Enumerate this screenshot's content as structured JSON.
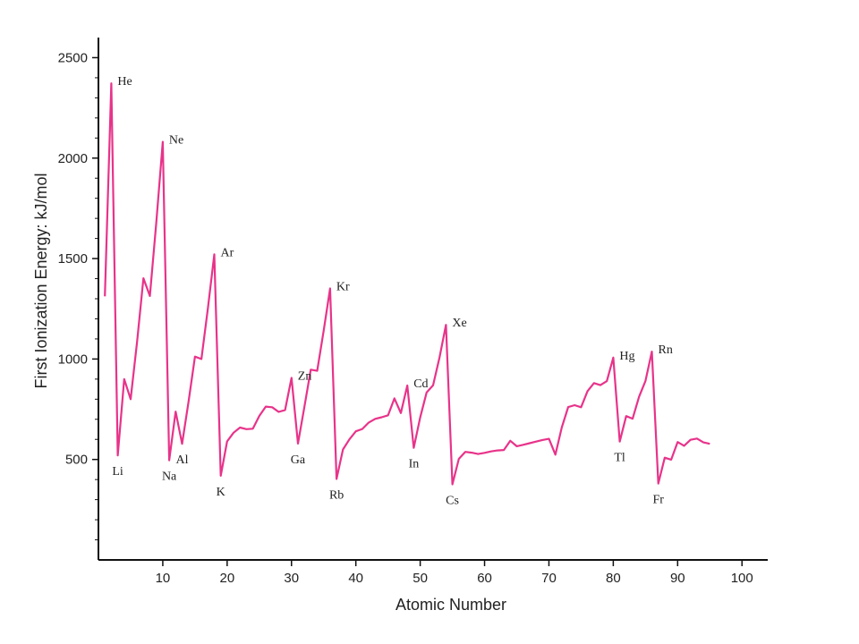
{
  "chart_data": {
    "type": "line",
    "title": "",
    "xlabel": "Atomic Number",
    "ylabel": "First Ionization Energy: kJ/mol",
    "xlim": [
      0,
      104
    ],
    "ylim": [
      0,
      2600
    ],
    "xticks": [
      10,
      20,
      30,
      40,
      50,
      60,
      70,
      80,
      90,
      100
    ],
    "yticks": [
      500,
      1000,
      1500,
      2000,
      2500
    ],
    "grid": false,
    "line_color": "#e8338a",
    "series": [
      {
        "x": [
          1,
          2,
          3,
          4,
          5,
          6,
          7,
          8,
          9,
          10,
          11,
          12,
          13,
          14,
          15,
          16,
          17,
          18,
          19,
          20,
          21,
          22,
          23,
          24,
          25,
          26,
          27,
          28,
          29,
          30,
          31,
          32,
          33,
          34,
          35,
          36,
          37,
          38,
          39,
          40,
          41,
          42,
          43,
          44,
          45,
          46,
          47,
          48,
          49,
          50,
          51,
          52,
          53,
          54,
          55,
          56,
          57,
          58,
          59,
          60,
          61,
          62,
          63,
          64,
          65,
          66,
          67,
          68,
          69,
          70,
          71,
          72,
          73,
          74,
          75,
          76,
          77,
          78,
          79,
          80,
          81,
          82,
          83,
          84,
          85,
          86,
          87,
          88,
          89,
          90,
          91,
          92,
          93,
          94,
          95
        ],
        "y": [
          1312,
          2372,
          520,
          900,
          800,
          1086,
          1402,
          1314,
          1681,
          2081,
          496,
          738,
          578,
          787,
          1012,
          1000,
          1251,
          1521,
          419,
          590,
          633,
          659,
          651,
          653,
          717,
          763,
          760,
          737,
          746,
          906,
          579,
          762,
          947,
          941,
          1140,
          1351,
          403,
          550,
          600,
          640,
          652,
          684,
          702,
          710,
          720,
          804,
          731,
          868,
          558,
          709,
          834,
          869,
          1008,
          1170,
          376,
          503,
          538,
          534,
          527,
          533,
          540,
          545,
          547,
          593,
          566,
          573,
          581,
          589,
          597,
          603,
          524,
          659,
          761,
          770,
          760,
          840,
          880,
          870,
          890,
          1007,
          589,
          716,
          703,
          812,
          890,
          1037,
          380,
          509,
          499,
          587,
          568,
          598,
          604,
          585,
          578
        ]
      }
    ],
    "annotations": [
      {
        "text": "He",
        "x": 2
      },
      {
        "text": "Li",
        "x": 3
      },
      {
        "text": "Ne",
        "x": 10
      },
      {
        "text": "Na",
        "x": 11
      },
      {
        "text": "Al",
        "x": 13
      },
      {
        "text": "Ar",
        "x": 18
      },
      {
        "text": "K",
        "x": 19
      },
      {
        "text": "Zn",
        "x": 30
      },
      {
        "text": "Ga",
        "x": 31
      },
      {
        "text": "Kr",
        "x": 36
      },
      {
        "text": "Rb",
        "x": 37
      },
      {
        "text": "Cd",
        "x": 48
      },
      {
        "text": "In",
        "x": 49
      },
      {
        "text": "Xe",
        "x": 54
      },
      {
        "text": "Cs",
        "x": 55
      },
      {
        "text": "Hg",
        "x": 80
      },
      {
        "text": "Tl",
        "x": 81
      },
      {
        "text": "Rn",
        "x": 86
      },
      {
        "text": "Fr",
        "x": 87
      }
    ]
  }
}
